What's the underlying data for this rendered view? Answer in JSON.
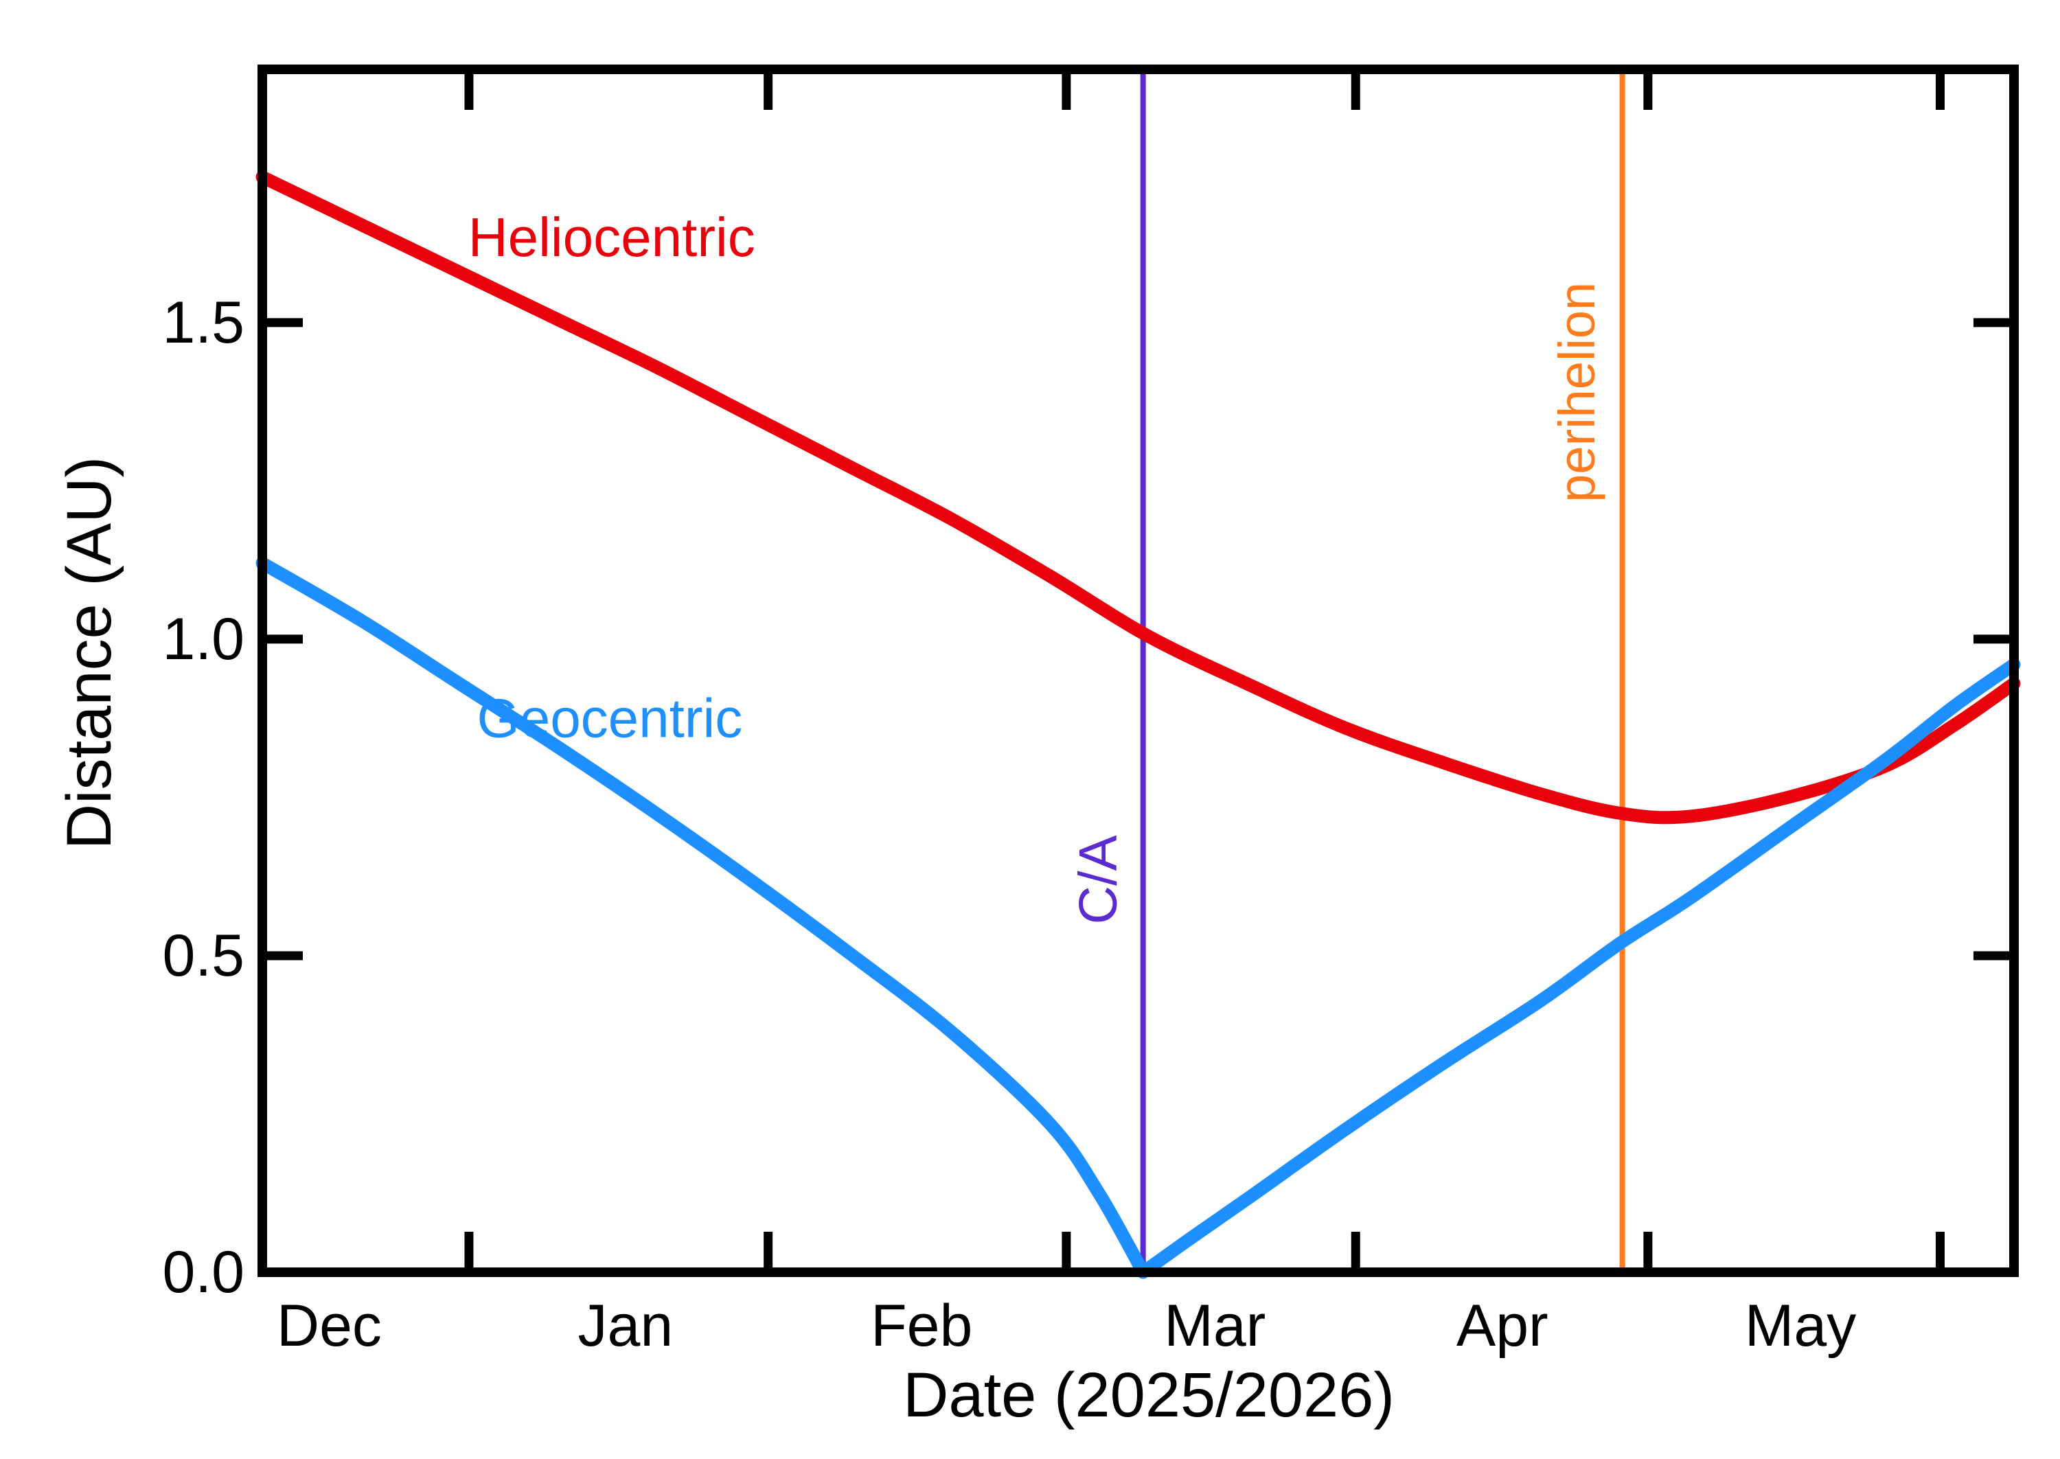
{
  "chart_data": {
    "type": "line",
    "title": "",
    "xlabel": "Date (2025/2026)",
    "ylabel": "Distance (AU)",
    "grid": false,
    "legend": "inline-curve-labels",
    "x_axis": {
      "unit": "day offset from left edge of plot (late Nov 2025 through late May 2026)",
      "range": [
        0,
        178
      ],
      "month_tick_days": [
        21,
        51.4,
        81.7,
        111.1,
        140.8,
        170.5
      ],
      "month_labels": [
        {
          "label": "Dec",
          "day": 6.8
        },
        {
          "label": "Jan",
          "day": 36.9
        },
        {
          "label": "Feb",
          "day": 67.0
        },
        {
          "label": "Mar",
          "day": 96.8
        },
        {
          "label": "Apr",
          "day": 126.0
        },
        {
          "label": "May",
          "day": 156.3
        }
      ]
    },
    "y_axis": {
      "range": [
        0,
        1.9
      ],
      "ticks": [
        {
          "value": 0.0,
          "label": "0.0"
        },
        {
          "value": 0.5,
          "label": "0.5"
        },
        {
          "value": 1.0,
          "label": "1.0"
        },
        {
          "value": 1.5,
          "label": "1.5"
        }
      ]
    },
    "series": [
      {
        "name": "Heliocentric",
        "color": "#e8000b",
        "stroke_width": 19,
        "label_anchor": {
          "day": 35.5,
          "au": 1.635
        },
        "days": [
          0,
          10,
          20,
          30,
          40,
          50,
          60,
          70,
          80,
          90,
          100,
          110,
          120,
          130,
          138,
          145,
          155,
          165,
          172,
          178
        ],
        "values": [
          1.73,
          1.655,
          1.58,
          1.505,
          1.43,
          1.35,
          1.27,
          1.19,
          1.1,
          1.005,
          0.93,
          0.86,
          0.805,
          0.755,
          0.725,
          0.72,
          0.75,
          0.8,
          0.865,
          0.93
        ]
      },
      {
        "name": "Geocentric",
        "color": "#1e8fff",
        "stroke_width": 19,
        "label_anchor": {
          "day": 35.3,
          "au": 0.875
        },
        "sharp_at_day": 89.5,
        "days": [
          0,
          10,
          20,
          30,
          40,
          50,
          60,
          70,
          80,
          85,
          89.5,
          94,
          100,
          110,
          120,
          130,
          138,
          145,
          155,
          165,
          172,
          178
        ],
        "values": [
          1.12,
          1.03,
          0.93,
          0.83,
          0.725,
          0.615,
          0.5,
          0.38,
          0.235,
          0.125,
          0.0,
          0.05,
          0.115,
          0.225,
          0.33,
          0.43,
          0.52,
          0.59,
          0.7,
          0.81,
          0.895,
          0.96
        ]
      }
    ],
    "events": [
      {
        "name": "C/A",
        "day": 89.5,
        "line_color": "#5a2bd0",
        "text_color": "#5a2bd0",
        "line_width": 8,
        "label_au": 0.62,
        "label_dx": -66,
        "font_size": 78
      },
      {
        "name": "perihelion",
        "day": 138.2,
        "line_color": "#ff7b1c",
        "text_color": "#ff7b1c",
        "line_width": 8,
        "label_au": 1.39,
        "label_dx": -66,
        "font_size": 74
      }
    ]
  },
  "frame": {
    "background": "#ffffff",
    "border_color": "#000000",
    "border_width": 14,
    "tick_width": 13,
    "tick_length": 52,
    "text_color": "#000000",
    "tick_font_size": 86,
    "axis_title_font_size": 92,
    "curve_label_font_size": 80
  }
}
